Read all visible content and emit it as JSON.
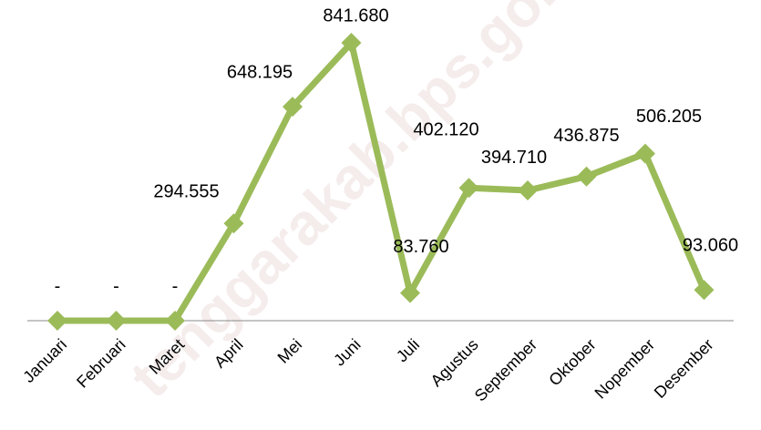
{
  "chart_data": {
    "type": "line",
    "categories": [
      "Januari",
      "Februari",
      "Maret",
      "April",
      "Mei",
      "Juni",
      "Juli",
      "Agustus",
      "September",
      "Oktober",
      "Nopember",
      "Desember"
    ],
    "series": [
      {
        "color": "#9bbb59",
        "values": [
          0,
          0,
          0,
          294555,
          648195,
          841680,
          83760,
          402120,
          394710,
          436875,
          506205,
          93060
        ],
        "value_labels": [
          "-",
          "-",
          "-",
          "294.555",
          "648.195",
          "841.680",
          "83.760",
          "402.120",
          "394.710",
          "436.875",
          "506.205",
          "93.060"
        ]
      }
    ],
    "watermark": "tenggarakab.bps.go.id"
  }
}
